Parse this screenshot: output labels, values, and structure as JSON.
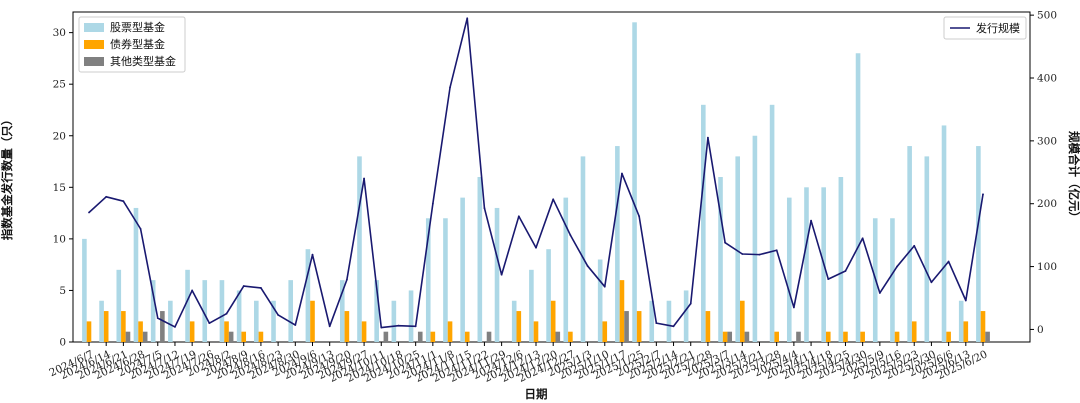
{
  "chart_data": {
    "type": "bar",
    "xlabel": "日期",
    "ylabel": "指数基金发行数量（只）",
    "y2label": "规模合计（亿元）",
    "ylim": [
      0,
      32
    ],
    "y2lim": [
      -20,
      505
    ],
    "yticks": [
      0,
      5,
      10,
      15,
      20,
      25,
      30
    ],
    "y2ticks": [
      0,
      100,
      200,
      300,
      400,
      500
    ],
    "legend_left_position": "upper-left",
    "legend_right_position": "upper-right",
    "categories": [
      "2024/6/7",
      "2024/6/14",
      "2024/6/21",
      "2024/6/28",
      "2024/7/5",
      "2024/7/12",
      "2024/7/19",
      "2024/7/26",
      "2024/8/2",
      "2024/8/9",
      "2024/8/16",
      "2024/8/23",
      "2024/8/30",
      "2024/9/6",
      "2024/9/13",
      "2024/9/20",
      "2024/9/27",
      "2024/10/11",
      "2024/10/18",
      "2024/10/25",
      "2024/11/1",
      "2024/11/8",
      "2024/11/15",
      "2024/11/22",
      "2024/11/29",
      "2024/12/6",
      "2024/12/13",
      "2024/12/20",
      "2024/12/27",
      "2025/1/3",
      "2025/1/10",
      "2025/1/17",
      "2025/1/25",
      "2025/2/7",
      "2025/2/14",
      "2025/2/21",
      "2025/2/28",
      "2025/3/7",
      "2025/3/14",
      "2025/3/21",
      "2025/3/28",
      "2025/4/4",
      "2025/4/11",
      "2025/4/18",
      "2025/4/25",
      "2025/4/30",
      "2025/5/9",
      "2025/5/16",
      "2025/5/23",
      "2025/5/30",
      "2025/6/6",
      "2025/6/13",
      "2025/6/20"
    ],
    "series": [
      {
        "name": "股票型基金",
        "axis": "left",
        "kind": "bar",
        "color": "#add8e6",
        "values": [
          10,
          4,
          7,
          13,
          6,
          4,
          7,
          6,
          6,
          5,
          4,
          4,
          6,
          9,
          0,
          6,
          18,
          6,
          4,
          5,
          12,
          12,
          14,
          16,
          13,
          4,
          7,
          9,
          14,
          18,
          8,
          19,
          31,
          4,
          4,
          5,
          23,
          16,
          18,
          20,
          23,
          14,
          15,
          15,
          16,
          28,
          12,
          12,
          19,
          18,
          21,
          4,
          19
        ]
      },
      {
        "name": "债券型基金",
        "axis": "left",
        "kind": "bar",
        "color": "#ffa500",
        "values": [
          2,
          3,
          3,
          2,
          0,
          0,
          2,
          0,
          2,
          1,
          1,
          0,
          0,
          4,
          0,
          3,
          2,
          0,
          0,
          0,
          1,
          2,
          1,
          0,
          0,
          3,
          2,
          4,
          1,
          0,
          2,
          6,
          3,
          0,
          0,
          0,
          3,
          1,
          4,
          0,
          1,
          0,
          0,
          1,
          1,
          1,
          0,
          1,
          2,
          0,
          1,
          2,
          3
        ]
      },
      {
        "name": "其他类型基金",
        "axis": "left",
        "kind": "bar",
        "color": "#808080",
        "values": [
          0,
          0,
          1,
          1,
          3,
          0,
          0,
          0,
          1,
          0,
          0,
          0,
          0,
          0,
          0,
          0,
          0,
          1,
          0,
          1,
          0,
          0,
          0,
          1,
          0,
          0,
          0,
          1,
          0,
          0,
          0,
          3,
          0,
          0,
          0,
          0,
          0,
          1,
          1,
          0,
          0,
          1,
          0,
          0,
          0,
          0,
          0,
          0,
          0,
          0,
          0,
          0,
          1
        ]
      },
      {
        "name": "发行规模",
        "axis": "right",
        "kind": "line",
        "color": "#191970",
        "values": [
          186,
          211,
          204,
          160,
          18,
          4,
          62,
          10,
          25,
          69,
          66,
          23,
          7,
          119,
          5,
          79,
          240,
          3,
          6,
          5,
          200,
          385,
          495,
          193,
          87,
          180,
          130,
          207,
          150,
          101,
          68,
          248,
          180,
          10,
          5,
          41,
          305,
          138,
          120,
          119,
          126,
          35,
          173,
          80,
          93,
          145,
          58,
          100,
          133,
          75,
          108,
          46,
          215
        ]
      }
    ]
  }
}
